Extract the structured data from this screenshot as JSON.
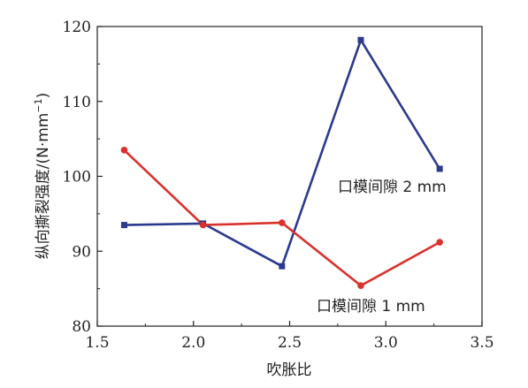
{
  "chart_data": {
    "type": "line",
    "xlabel": "吹胀比",
    "ylabel_main": "纵向撕裂强度/(N·mm",
    "ylabel_sup": "−1",
    "ylabel_close": ")",
    "xlim": [
      1.5,
      3.5
    ],
    "ylim": [
      80,
      120
    ],
    "xticks": [
      1.5,
      2.0,
      2.5,
      3.0,
      3.5
    ],
    "yticks": [
      80,
      90,
      100,
      110,
      120
    ],
    "xtick_labels": [
      "1.5",
      "2.0",
      "2.5",
      "3.0",
      "3.5"
    ],
    "ytick_labels": [
      "80",
      "90",
      "100",
      "110",
      "120"
    ],
    "grid": false,
    "series": [
      {
        "name": "口模间隙 2 mm",
        "color": "#2b3a8c",
        "marker": "square",
        "x": [
          1.64,
          2.05,
          2.46,
          2.87,
          3.28
        ],
        "y": [
          93.5,
          93.7,
          88.0,
          118.2,
          101.0
        ]
      },
      {
        "name": "口模间隙 1 mm",
        "color": "#d9312c",
        "marker": "circle",
        "x": [
          1.64,
          2.05,
          2.46,
          2.87,
          3.28
        ],
        "y": [
          103.5,
          93.5,
          93.8,
          85.4,
          91.2
        ]
      }
    ]
  }
}
